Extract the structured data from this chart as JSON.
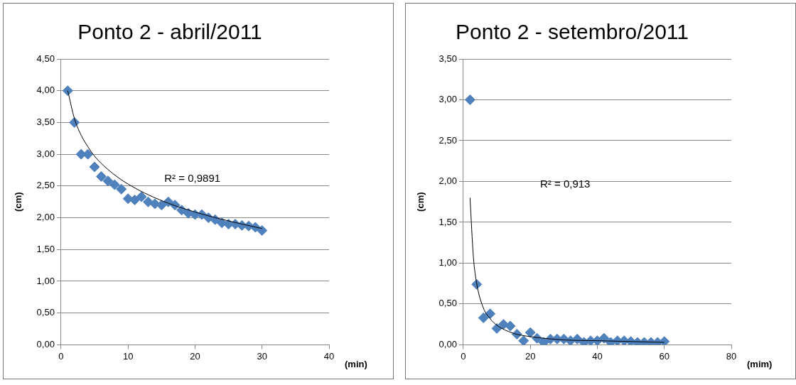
{
  "chart_data": [
    {
      "type": "scatter",
      "title": "Ponto 2 - abril/2011",
      "xlabel": "(min)",
      "ylabel": "(cm)",
      "xlim": [
        0,
        40
      ],
      "xticks": [
        0,
        10,
        20,
        30,
        40
      ],
      "ylim": [
        0,
        4.5
      ],
      "yticks": [
        {
          "value": 0,
          "label": "0,00"
        },
        {
          "value": 0.5,
          "label": "0,50"
        },
        {
          "value": 1,
          "label": "1,00"
        },
        {
          "value": 1.5,
          "label": "1,50"
        },
        {
          "value": 2,
          "label": "2,00"
        },
        {
          "value": 2.5,
          "label": "2,50"
        },
        {
          "value": 3,
          "label": "3,00"
        },
        {
          "value": 3.5,
          "label": "3,50"
        },
        {
          "value": 4,
          "label": "4,00"
        },
        {
          "value": 4.5,
          "label": "4,50"
        }
      ],
      "grid": "y",
      "legend": false,
      "annotations": [
        "R² = 0,9891"
      ],
      "series": [
        {
          "marker": "diamond",
          "color": "#4f81bd",
          "x": [
            1,
            2,
            3,
            4,
            5,
            6,
            7,
            8,
            9,
            10,
            11,
            12,
            13,
            14,
            15,
            16,
            17,
            18,
            19,
            20,
            21,
            22,
            23,
            24,
            25,
            26,
            27,
            28,
            29,
            30
          ],
          "values": [
            4.0,
            3.5,
            3.0,
            3.0,
            2.8,
            2.65,
            2.58,
            2.52,
            2.45,
            2.3,
            2.28,
            2.33,
            2.25,
            2.22,
            2.2,
            2.25,
            2.2,
            2.12,
            2.07,
            2.05,
            2.05,
            2.0,
            1.97,
            1.92,
            1.9,
            1.9,
            1.88,
            1.87,
            1.85,
            1.8
          ]
        },
        {
          "type": "line",
          "marker": "none",
          "color": "#000000",
          "line_style": "solid",
          "x": [
            1,
            2,
            3,
            4,
            5,
            7,
            10,
            15,
            20,
            25,
            30
          ],
          "values": [
            4.0,
            3.56,
            3.3,
            3.12,
            2.97,
            2.76,
            2.53,
            2.27,
            2.09,
            1.95,
            1.83
          ]
        }
      ]
    },
    {
      "type": "scatter",
      "title": "Ponto 2 - setembro/2011",
      "xlabel": "(mim)",
      "ylabel": "(cm)",
      "xlim": [
        0,
        80
      ],
      "xticks": [
        0,
        20,
        40,
        60,
        80
      ],
      "ylim": [
        0,
        3.5
      ],
      "yticks": [
        {
          "value": 0,
          "label": "0,00"
        },
        {
          "value": 0.5,
          "label": "0,50"
        },
        {
          "value": 1,
          "label": "1,00"
        },
        {
          "value": 1.5,
          "label": "1,50"
        },
        {
          "value": 2,
          "label": "2,00"
        },
        {
          "value": 2.5,
          "label": "2,50"
        },
        {
          "value": 3,
          "label": "3,00"
        },
        {
          "value": 3.5,
          "label": "3,50"
        }
      ],
      "grid": "y",
      "legend": false,
      "annotations": [
        "R² = 0,913"
      ],
      "series": [
        {
          "marker": "diamond",
          "color": "#4f81bd",
          "x": [
            2,
            4,
            6,
            8,
            10,
            12,
            14,
            16,
            18,
            20,
            22,
            24,
            26,
            28,
            30,
            32,
            34,
            36,
            38,
            40,
            42,
            44,
            46,
            48,
            50,
            52,
            54,
            56,
            58,
            60
          ],
          "values": [
            3.0,
            0.74,
            0.33,
            0.38,
            0.2,
            0.25,
            0.23,
            0.13,
            0.05,
            0.15,
            0.08,
            0.03,
            0.07,
            0.07,
            0.07,
            0.05,
            0.07,
            0.03,
            0.05,
            0.05,
            0.08,
            0.03,
            0.05,
            0.05,
            0.04,
            0.03,
            0.03,
            0.03,
            0.03,
            0.04
          ]
        },
        {
          "type": "line",
          "marker": "none",
          "color": "#000000",
          "line_style": "solid",
          "x": [
            2,
            3,
            4,
            6,
            8,
            10,
            15,
            20,
            30,
            40,
            60
          ],
          "values": [
            1.8,
            1.08,
            0.75,
            0.45,
            0.32,
            0.24,
            0.14,
            0.1,
            0.06,
            0.05,
            0.03
          ]
        }
      ]
    }
  ]
}
